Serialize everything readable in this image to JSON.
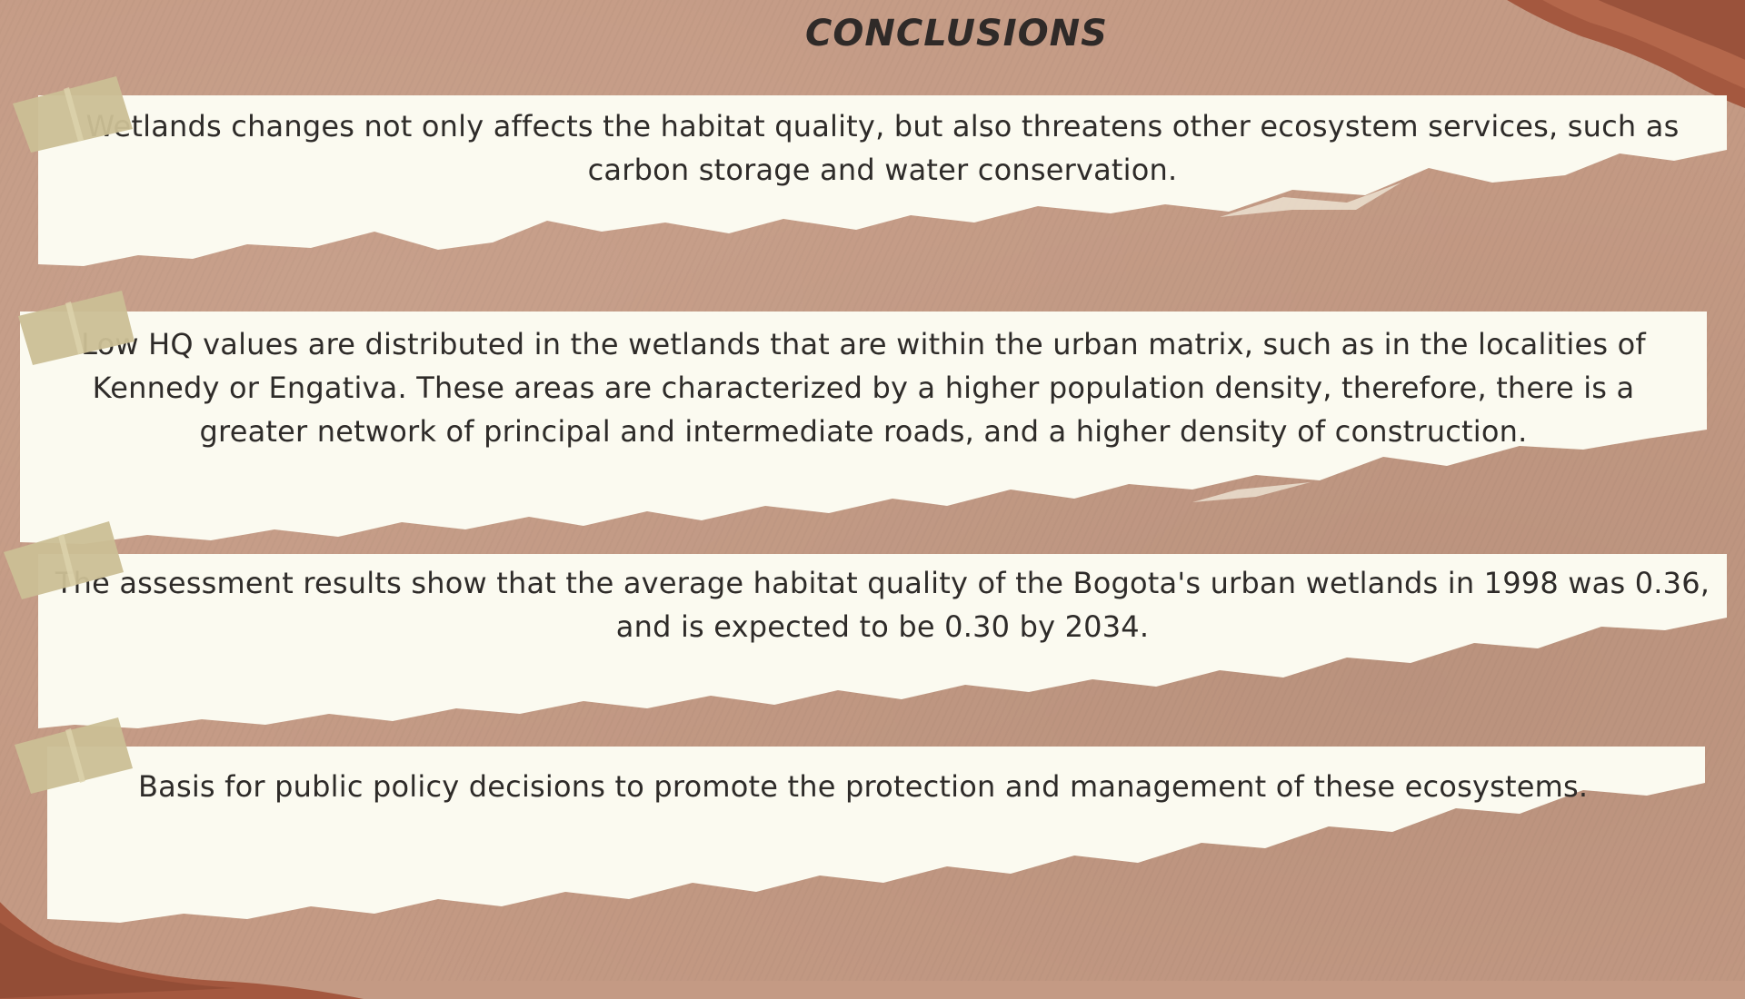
{
  "slide": {
    "title": "CONCLUSIONS",
    "cards": [
      {
        "text": "Wetlands changes not only affects the habitat quality, but also threatens other ecosystem services, such as carbon storage and water conservation."
      },
      {
        "text": "Low HQ values are distributed in the wetlands that are within the urban matrix, such as in the localities of Kennedy or Engativa. These areas are characterized by a higher population density, therefore, there is a greater network of principal and intermediate roads, and a higher density of construction."
      },
      {
        "text": "The assessment results show that the average habitat quality of the Bogota's urban wetlands in 1998 was 0.36, and is expected to be 0.30 by 2034."
      },
      {
        "text": "Basis for public policy decisions to promote the protection and management of these ecosystems."
      }
    ]
  },
  "colors": {
    "background": "#c49a84",
    "paper": "#fbfaf0",
    "text": "#2e2b29",
    "tape": "#cbbf95",
    "foil": "#a4583f"
  }
}
